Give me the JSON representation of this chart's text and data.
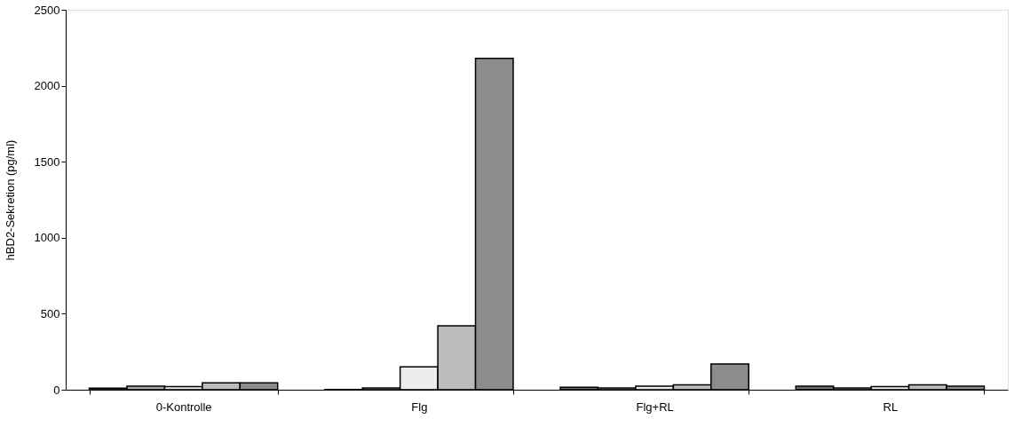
{
  "chart_data": {
    "type": "bar",
    "ylabel": "hBD2-Sekretion (pg/ml)",
    "categories": [
      "0-Kontrolle",
      "Flg",
      "Flg+RL",
      "RL"
    ],
    "series": [
      {
        "color": "#6e6e6e",
        "values": [
          10,
          2,
          16,
          24
        ]
      },
      {
        "color": "#a8a8a8",
        "values": [
          24,
          12,
          12,
          12
        ]
      },
      {
        "color": "#ececec",
        "values": [
          20,
          150,
          24,
          20
        ]
      },
      {
        "color": "#bcbcbc",
        "values": [
          45,
          420,
          32,
          32
        ]
      },
      {
        "color": "#8c8c8c",
        "values": [
          45,
          2180,
          170,
          24
        ]
      }
    ],
    "ylim": [
      0,
      2500
    ],
    "yticks": [
      0,
      500,
      1000,
      1500,
      2000,
      2500
    ],
    "grid": false,
    "legend": false
  }
}
